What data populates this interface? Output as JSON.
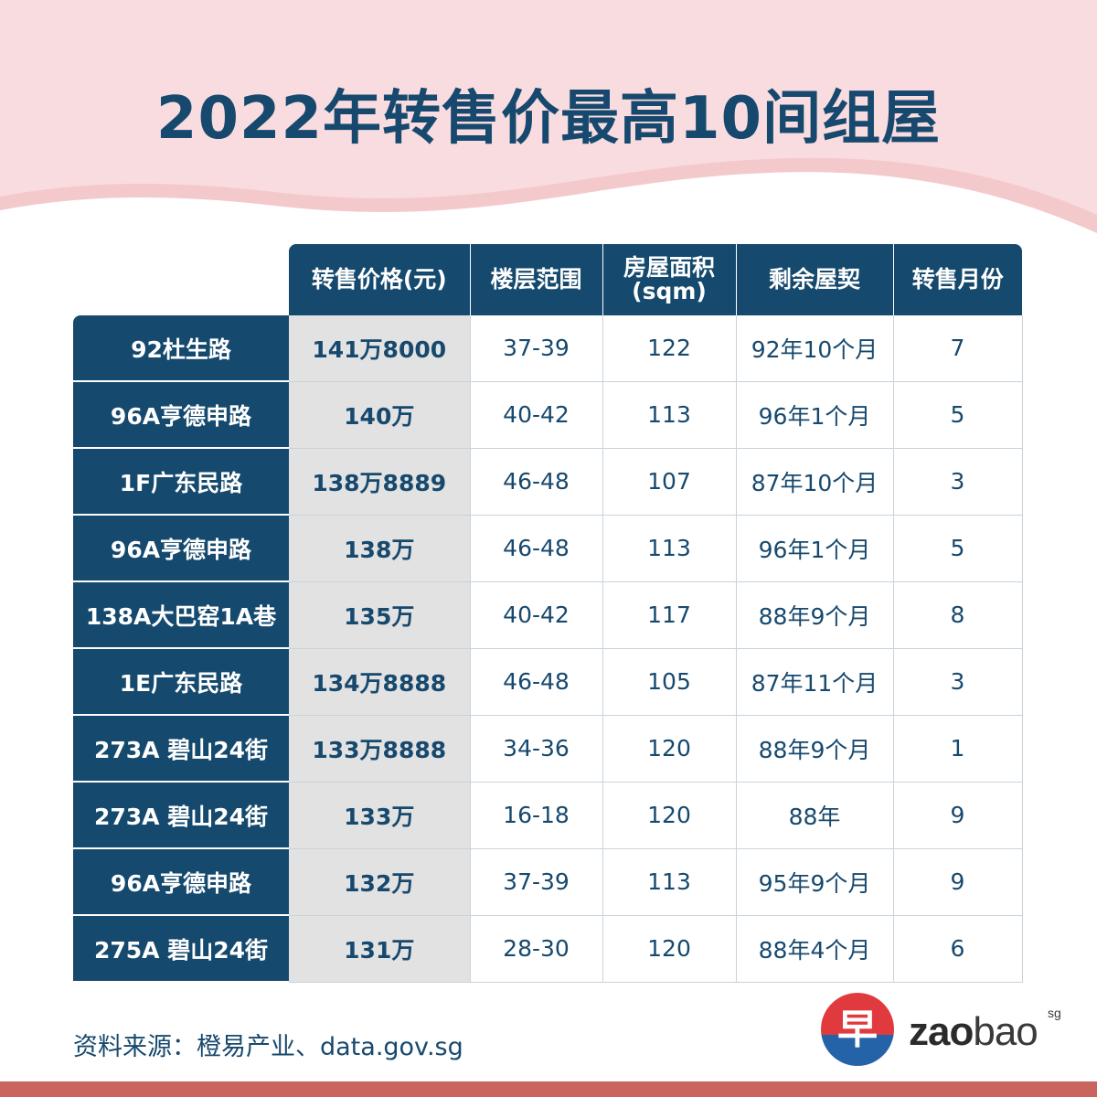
{
  "title": "2022年转售价最高10间组屋",
  "table": {
    "headers": [
      "转售价格(元)",
      "楼层范围",
      "房屋面积\n(sqm)",
      "剩余屋契",
      "转售月份"
    ],
    "rows": [
      {
        "name": "92杜生路",
        "price": "141万8000",
        "floor": "37-39",
        "area": "122",
        "lease": "92年10个月",
        "month": "7"
      },
      {
        "name": "96A亨德申路",
        "price": "140万",
        "floor": "40-42",
        "area": "113",
        "lease": "96年1个月",
        "month": "5"
      },
      {
        "name": "1F广东民路",
        "price": "138万8889",
        "floor": "46-48",
        "area": "107",
        "lease": "87年10个月",
        "month": "3"
      },
      {
        "name": "96A亨德申路",
        "price": "138万",
        "floor": "46-48",
        "area": "113",
        "lease": "96年1个月",
        "month": "5"
      },
      {
        "name": "138A大巴窑1A巷",
        "price": "135万",
        "floor": "40-42",
        "area": "117",
        "lease": "88年9个月",
        "month": "8"
      },
      {
        "name": "1E广东民路",
        "price": "134万8888",
        "floor": "46-48",
        "area": "105",
        "lease": "87年11个月",
        "month": "3"
      },
      {
        "name": "273A 碧山24街",
        "price": "133万8888",
        "floor": "34-36",
        "area": "120",
        "lease": "88年9个月",
        "month": "1"
      },
      {
        "name": "273A 碧山24街",
        "price": "133万",
        "floor": "16-18",
        "area": "120",
        "lease": "88年",
        "month": "9"
      },
      {
        "name": "96A亨德申路",
        "price": "132万",
        "floor": "37-39",
        "area": "113",
        "lease": "95年9个月",
        "month": "9"
      },
      {
        "name": "275A 碧山24街",
        "price": "131万",
        "floor": "28-30",
        "area": "120",
        "lease": "88年4个月",
        "month": "6"
      }
    ]
  },
  "source": "资料来源：橙易产业、data.gov.sg",
  "logo": {
    "glyph": "早",
    "zao": "zao",
    "bao": "bao",
    "sg": "sg"
  },
  "colors": {
    "navy": "#15496d",
    "pink": "#f9dcdf",
    "price_bg": "#e2e2e2",
    "bar": "#c9645f",
    "logo_red": "#e03a3e",
    "logo_blue": "#2563a8"
  }
}
